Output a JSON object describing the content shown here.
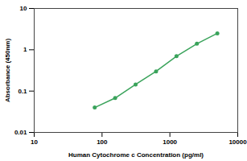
{
  "chart_data": {
    "type": "line",
    "marker": "circle",
    "color": "#3aa35b",
    "x_label": "Human Cytochrome c Concentration (pg/ml)",
    "y_label": "Absorbance (450nm)",
    "log": true,
    "x": [
      78,
      156,
      312,
      625,
      1250,
      2500,
      5000
    ],
    "values": [
      0.04,
      0.068,
      0.145,
      0.3,
      0.7,
      1.4,
      2.5
    ],
    "xlim": [
      10,
      10000
    ],
    "xticks": [
      10,
      100,
      1000,
      10000
    ],
    "ylim": [
      0.01,
      10
    ],
    "yticks": [
      0.01,
      0.1,
      1,
      10
    ],
    "grid": false
  }
}
